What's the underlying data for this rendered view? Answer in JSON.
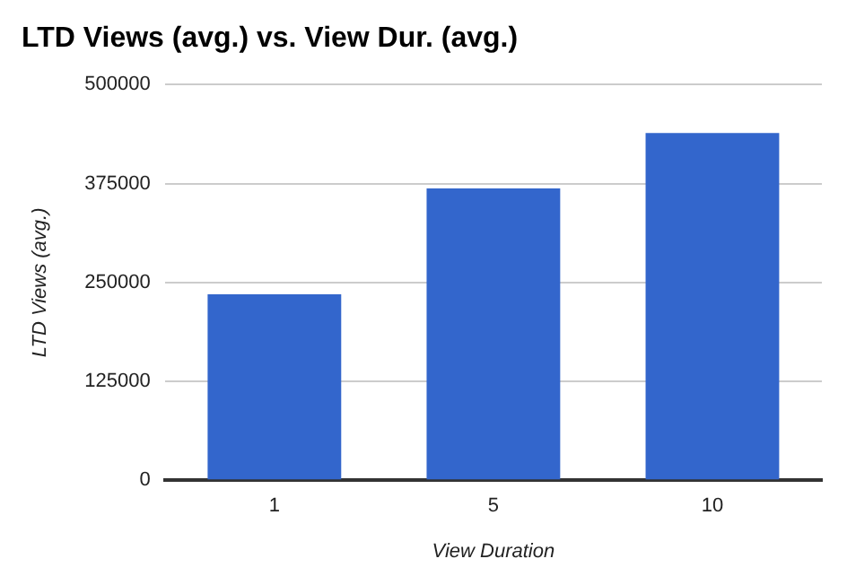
{
  "chart_data": {
    "type": "bar",
    "title": "LTD Views (avg.) vs. View Dur. (avg.)",
    "xlabel": "View Duration",
    "ylabel": "LTD Views (avg.)",
    "categories": [
      "1",
      "5",
      "10"
    ],
    "values": [
      235000,
      369000,
      439000
    ],
    "color": "#3366cc",
    "ylim": [
      0,
      500000
    ],
    "yticks": [
      0,
      125000,
      250000,
      375000,
      500000
    ],
    "grid": "y",
    "legend": false
  }
}
